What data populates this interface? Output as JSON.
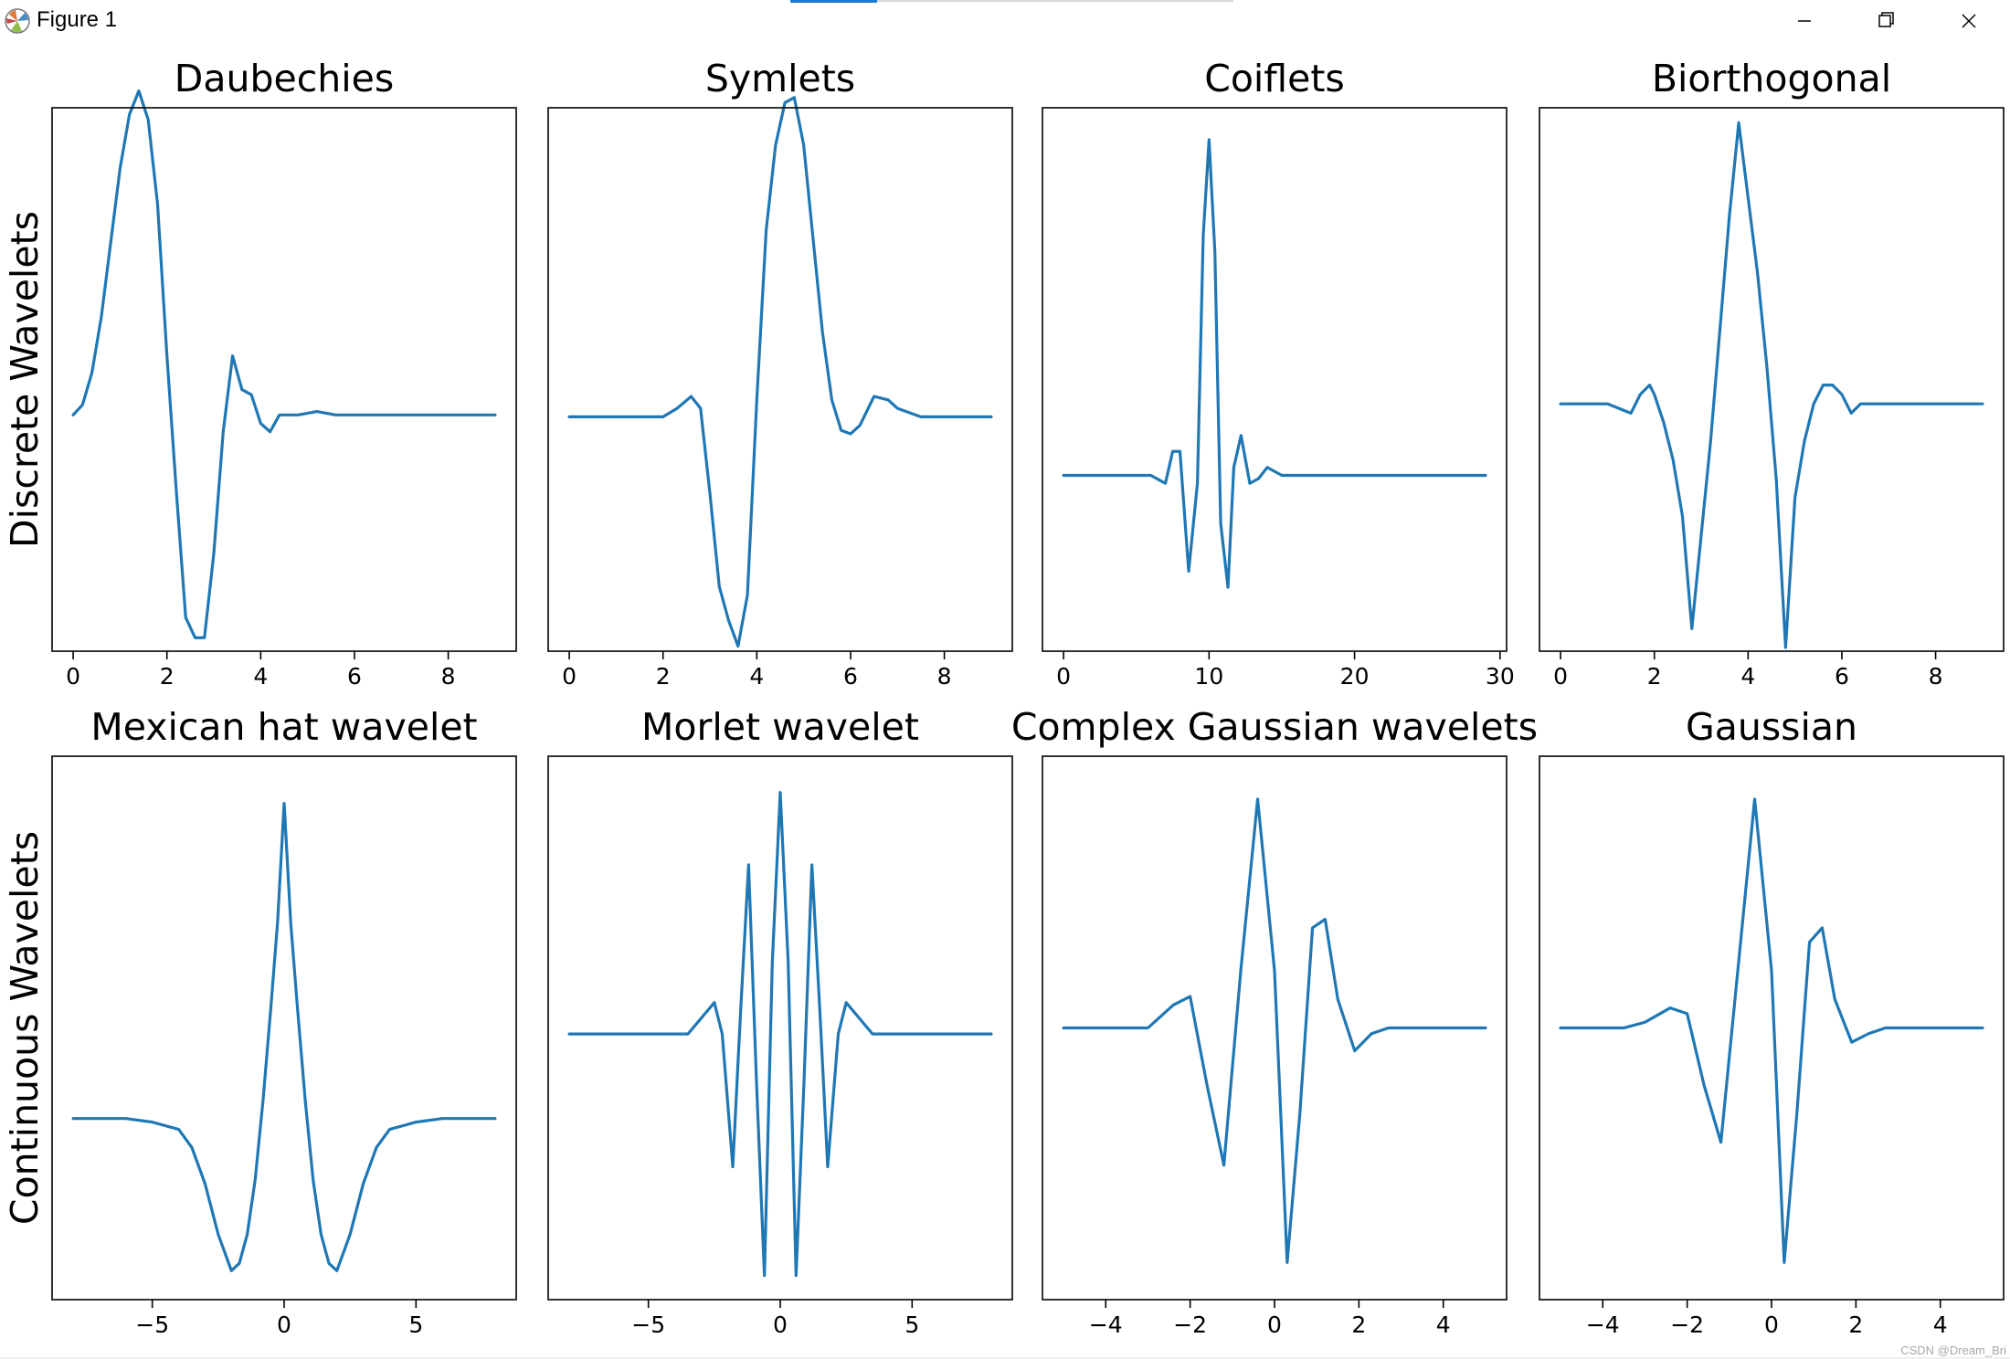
{
  "window": {
    "title": "Figure 1",
    "minimize_label": "",
    "maximize_label": "",
    "close_label": ""
  },
  "watermark": "CSDN @Dream_Bri",
  "row_labels": [
    "Discrete Wavelets",
    "Continuous Wavelets"
  ],
  "colors": {
    "line": "#1f77b4",
    "axes": "#000000",
    "text": "#000000"
  },
  "chart_data": [
    {
      "type": "line",
      "title": "Daubechies",
      "xlim": [
        -0.45,
        9.45
      ],
      "ylim": [
        -1.4,
        1.82
      ],
      "xticks": [
        0,
        2,
        4,
        6,
        8
      ],
      "xtick_labels": [
        "0",
        "2",
        "4",
        "6",
        "8"
      ],
      "x": [
        0,
        0.2,
        0.4,
        0.6,
        0.8,
        1.0,
        1.2,
        1.4,
        1.6,
        1.8,
        2.0,
        2.2,
        2.4,
        2.6,
        2.8,
        3.0,
        3.2,
        3.4,
        3.6,
        3.8,
        4.0,
        4.2,
        4.4,
        4.6,
        4.8,
        5.0,
        5.2,
        5.4,
        5.6,
        5.8,
        6.0,
        6.5,
        7.0,
        8.0,
        9.0
      ],
      "y": [
        0,
        0.06,
        0.25,
        0.58,
        1.02,
        1.46,
        1.78,
        1.92,
        1.75,
        1.25,
        0.35,
        -0.45,
        -1.2,
        -1.32,
        -1.32,
        -0.82,
        -0.1,
        0.35,
        0.15,
        0.12,
        -0.05,
        -0.1,
        0.0,
        0.0,
        0.0,
        0.01,
        0.02,
        0.01,
        0.0,
        0.0,
        0.0,
        0.0,
        0.0,
        0.0,
        0.0
      ]
    },
    {
      "type": "line",
      "title": "Symlets",
      "xlim": [
        -0.45,
        9.45
      ],
      "ylim": [
        -1.38,
        1.82
      ],
      "xticks": [
        0,
        2,
        4,
        6,
        8
      ],
      "xtick_labels": [
        "0",
        "2",
        "4",
        "6",
        "8"
      ],
      "x": [
        0,
        0.5,
        1.0,
        1.5,
        2.0,
        2.3,
        2.6,
        2.8,
        3.0,
        3.2,
        3.4,
        3.6,
        3.8,
        4.0,
        4.2,
        4.4,
        4.6,
        4.8,
        5.0,
        5.2,
        5.4,
        5.6,
        5.8,
        6.0,
        6.2,
        6.5,
        6.8,
        7.0,
        7.5,
        8.0,
        8.5,
        9.0
      ],
      "y": [
        0,
        0,
        0,
        0,
        0.0,
        0.05,
        0.12,
        0.05,
        -0.45,
        -1.0,
        -1.2,
        -1.35,
        -1.05,
        0.1,
        1.1,
        1.6,
        1.85,
        1.88,
        1.6,
        1.05,
        0.5,
        0.1,
        -0.08,
        -0.1,
        -0.05,
        0.12,
        0.1,
        0.05,
        0.0,
        0.0,
        0.0,
        0.0
      ]
    },
    {
      "type": "line",
      "title": "Coiflets",
      "xlim": [
        -1.45,
        30.45
      ],
      "ylim": [
        -1.1,
        2.3
      ],
      "xticks": [
        0,
        10,
        20,
        30
      ],
      "xtick_labels": [
        "0",
        "10",
        "20",
        "30"
      ],
      "x": [
        0,
        3,
        6,
        7,
        7.5,
        8.0,
        8.6,
        9.2,
        9.6,
        10.0,
        10.4,
        10.8,
        11.3,
        11.7,
        12.2,
        12.8,
        13.4,
        14.0,
        15.0,
        17.0,
        20.0,
        25.0,
        29.0
      ],
      "y": [
        0,
        0,
        0,
        -0.05,
        0.15,
        0.15,
        -0.6,
        -0.05,
        1.5,
        2.1,
        1.4,
        -0.3,
        -0.7,
        0.05,
        0.25,
        -0.05,
        -0.02,
        0.05,
        0.0,
        0.0,
        0.0,
        0.0,
        0.0
      ]
    },
    {
      "type": "line",
      "title": "Biorthogonal",
      "xlim": [
        -0.45,
        9.45
      ],
      "ylim": [
        -1.32,
        1.58
      ],
      "xticks": [
        0,
        2,
        4,
        6,
        8
      ],
      "xtick_labels": [
        "0",
        "2",
        "4",
        "6",
        "8"
      ],
      "x": [
        0,
        1.0,
        1.5,
        1.7,
        1.9,
        2.0,
        2.2,
        2.4,
        2.6,
        2.8,
        3.0,
        3.2,
        3.4,
        3.6,
        3.8,
        4.0,
        4.2,
        4.4,
        4.6,
        4.8,
        5.0,
        5.2,
        5.4,
        5.6,
        5.8,
        6.0,
        6.2,
        6.4,
        6.6,
        7.0,
        8.0,
        9.0
      ],
      "y": [
        0,
        0,
        -0.05,
        0.05,
        0.1,
        0.05,
        -0.1,
        -0.3,
        -0.6,
        -1.2,
        -0.7,
        -0.2,
        0.4,
        1.0,
        1.5,
        1.1,
        0.7,
        0.2,
        -0.4,
        -1.3,
        -0.5,
        -0.2,
        0.0,
        0.1,
        0.1,
        0.05,
        -0.05,
        0.0,
        0.0,
        0.0,
        0.0,
        0.0
      ]
    },
    {
      "type": "line",
      "title": "Mexican hat wavelet",
      "xlim": [
        -8.8,
        8.8
      ],
      "ylim": [
        -0.5,
        1.0
      ],
      "xticks": [
        -5,
        0,
        5
      ],
      "xtick_labels": [
        "−5",
        "0",
        "5"
      ],
      "x": [
        -8,
        -7,
        -6,
        -5,
        -4,
        -3.5,
        -3,
        -2.5,
        -2,
        -1.7,
        -1.4,
        -1.1,
        -0.8,
        -0.5,
        -0.25,
        0,
        0.25,
        0.5,
        0.8,
        1.1,
        1.4,
        1.7,
        2,
        2.5,
        3,
        3.5,
        4,
        5,
        6,
        7,
        8
      ],
      "y": [
        0,
        0,
        0,
        -0.01,
        -0.03,
        -0.08,
        -0.18,
        -0.32,
        -0.42,
        -0.4,
        -0.32,
        -0.17,
        0.05,
        0.31,
        0.54,
        0.87,
        0.54,
        0.31,
        0.05,
        -0.17,
        -0.32,
        -0.4,
        -0.42,
        -0.32,
        -0.18,
        -0.08,
        -0.03,
        -0.01,
        0,
        0,
        0
      ]
    },
    {
      "type": "line",
      "title": "Morlet wavelet",
      "xlim": [
        -8.8,
        8.8
      ],
      "ylim": [
        -1.1,
        1.15
      ],
      "xticks": [
        -5,
        0,
        5
      ],
      "xtick_labels": [
        "−5",
        "0",
        "5"
      ],
      "x": [
        -8,
        -5,
        -3.5,
        -2.5,
        -2.2,
        -1.8,
        -1.5,
        -1.2,
        -0.9,
        -0.6,
        -0.3,
        0,
        0.3,
        0.6,
        0.9,
        1.2,
        1.5,
        1.8,
        2.2,
        2.5,
        3.5,
        5,
        8
      ],
      "y": [
        0,
        0,
        0.0,
        0.13,
        0.0,
        -0.55,
        0.1,
        0.7,
        -0.2,
        -1.0,
        0.3,
        1.0,
        0.3,
        -1.0,
        -0.2,
        0.7,
        0.1,
        -0.55,
        0.0,
        0.13,
        0.0,
        0,
        0
      ]
    },
    {
      "type": "line",
      "title": "Complex Gaussian wavelets",
      "xlim": [
        -5.5,
        5.5
      ],
      "ylim": [
        -0.95,
        0.95
      ],
      "xticks": [
        -4,
        -2,
        0,
        2,
        4
      ],
      "xtick_labels": [
        "−4",
        "−2",
        "0",
        "2",
        "4"
      ],
      "x": [
        -5,
        -3.5,
        -3,
        -2.4,
        -2.0,
        -1.6,
        -1.2,
        -0.8,
        -0.4,
        0.0,
        0.3,
        0.6,
        0.9,
        1.2,
        1.5,
        1.9,
        2.3,
        2.7,
        3.2,
        4,
        5
      ],
      "y": [
        0,
        0,
        0.0,
        0.08,
        0.11,
        -0.2,
        -0.48,
        0.2,
        0.8,
        0.2,
        -0.82,
        -0.3,
        0.35,
        0.38,
        0.1,
        -0.08,
        -0.02,
        0.0,
        0.0,
        0,
        0
      ]
    },
    {
      "type": "line",
      "title": "Gaussian",
      "xlim": [
        -5.5,
        5.5
      ],
      "ylim": [
        -0.95,
        0.95
      ],
      "xticks": [
        -4,
        -2,
        0,
        2,
        4
      ],
      "xtick_labels": [
        "−4",
        "−2",
        "0",
        "2",
        "4"
      ],
      "x": [
        -5,
        -3.5,
        -3,
        -2.4,
        -2.0,
        -1.6,
        -1.2,
        -0.8,
        -0.4,
        0.0,
        0.3,
        0.6,
        0.9,
        1.2,
        1.5,
        1.9,
        2.3,
        2.7,
        3.2,
        4,
        5
      ],
      "y": [
        0,
        0,
        0.02,
        0.07,
        0.05,
        -0.2,
        -0.4,
        0.2,
        0.8,
        0.2,
        -0.82,
        -0.3,
        0.3,
        0.35,
        0.1,
        -0.05,
        -0.02,
        0.0,
        0.0,
        0,
        0
      ]
    }
  ]
}
